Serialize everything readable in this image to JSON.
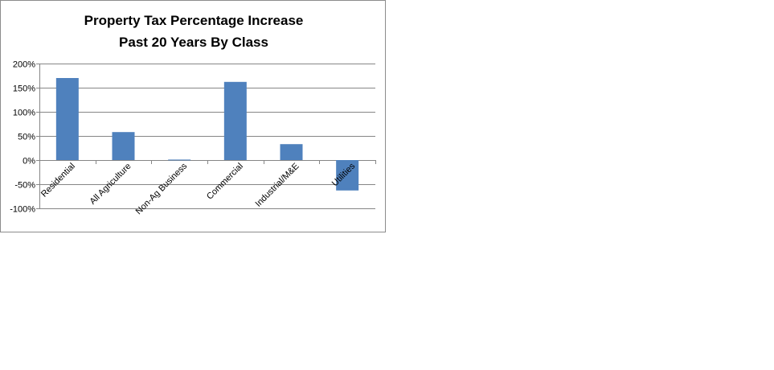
{
  "chart_data": {
    "type": "bar",
    "title": "Property Tax Percentage Increase",
    "subtitle": "Past 20 Years By Class",
    "categories": [
      "Residential",
      "All Agriculture",
      "Non-Ag Business",
      "Commercial",
      "Industrial/M&E",
      "Utilities"
    ],
    "series": [
      {
        "values": [
          170,
          58,
          1,
          162,
          33,
          -63
        ]
      }
    ],
    "ylim": [
      -100,
      200
    ],
    "yticks": [
      -100,
      -50,
      0,
      50,
      100,
      150,
      200
    ],
    "ytick_labels": [
      "-100%",
      "-50%",
      "0%",
      "50%",
      "100%",
      "150%",
      "200%"
    ],
    "grid": true,
    "legend": "none",
    "colors": {
      "bar": "#4f81bd",
      "grid": "#868686",
      "axis": "#868686"
    }
  }
}
